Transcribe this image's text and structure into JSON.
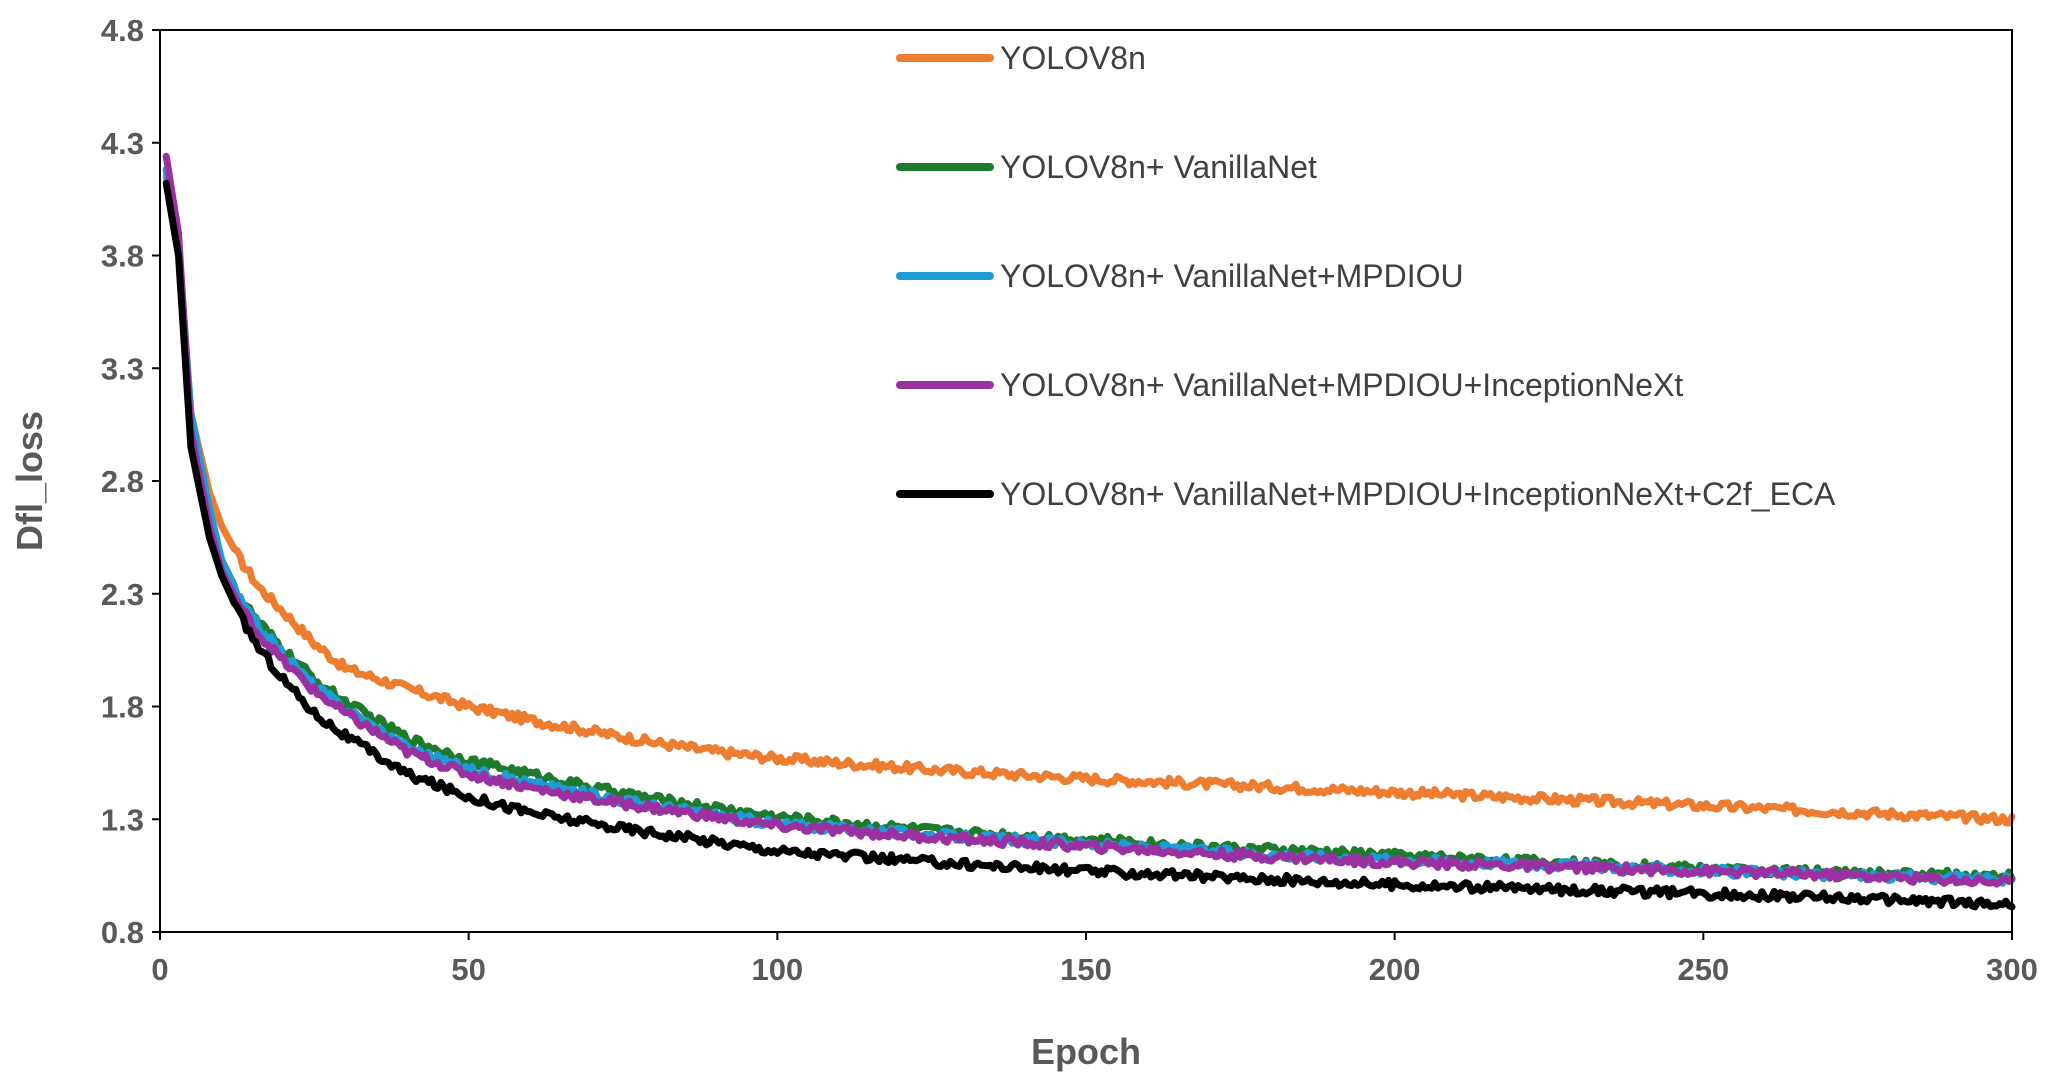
{
  "chart_data": {
    "type": "line",
    "title": "",
    "xlabel": "Epoch",
    "ylabel": "Dfl_loss",
    "xlim": [
      0,
      300
    ],
    "ylim": [
      0.8,
      4.8
    ],
    "xticks": [
      "0",
      "50",
      "100",
      "150",
      "200",
      "250",
      "300"
    ],
    "yticks": [
      "0.8",
      "1.3",
      "1.8",
      "2.3",
      "2.8",
      "3.3",
      "3.8",
      "4.3",
      "4.8"
    ],
    "legend_position": "top-center",
    "series": [
      {
        "name": "YOLOV8n",
        "color": "#ED7D31",
        "x": [
          1,
          3,
          5,
          8,
          10,
          13,
          16,
          20,
          25,
          30,
          40,
          50,
          60,
          70,
          80,
          90,
          100,
          125,
          150,
          175,
          200,
          225,
          250,
          275,
          300
        ],
        "y": [
          4.15,
          3.85,
          3.1,
          2.75,
          2.6,
          2.45,
          2.33,
          2.22,
          2.08,
          1.97,
          1.88,
          1.8,
          1.74,
          1.69,
          1.64,
          1.6,
          1.57,
          1.52,
          1.48,
          1.45,
          1.42,
          1.39,
          1.36,
          1.33,
          1.3
        ]
      },
      {
        "name": "YOLOV8n+ VanillaNet",
        "color": "#1E7B2C",
        "x": [
          1,
          3,
          5,
          8,
          10,
          13,
          16,
          20,
          25,
          30,
          40,
          50,
          60,
          70,
          80,
          90,
          100,
          125,
          150,
          175,
          200,
          225,
          250,
          275,
          300
        ],
        "y": [
          4.18,
          3.85,
          3.05,
          2.65,
          2.45,
          2.28,
          2.17,
          2.05,
          1.92,
          1.82,
          1.66,
          1.56,
          1.5,
          1.44,
          1.39,
          1.35,
          1.31,
          1.25,
          1.21,
          1.17,
          1.14,
          1.11,
          1.08,
          1.06,
          1.05
        ]
      },
      {
        "name": "YOLOV8n+ VanillaNet+MPDIOU",
        "color": "#1F9BD7",
        "x": [
          1,
          3,
          5,
          8,
          10,
          13,
          16,
          20,
          25,
          30,
          40,
          50,
          60,
          70,
          80,
          90,
          100,
          125,
          150,
          175,
          200,
          225,
          250,
          275,
          300
        ],
        "y": [
          4.18,
          3.85,
          3.1,
          2.68,
          2.45,
          2.27,
          2.15,
          2.03,
          1.89,
          1.79,
          1.62,
          1.52,
          1.46,
          1.41,
          1.36,
          1.32,
          1.28,
          1.23,
          1.19,
          1.15,
          1.12,
          1.1,
          1.07,
          1.05,
          1.03
        ]
      },
      {
        "name": "YOLOV8n+ VanillaNet+MPDIOU+InceptionNeXt",
        "color": "#9B30A0",
        "x": [
          1,
          3,
          5,
          8,
          10,
          13,
          16,
          20,
          25,
          30,
          40,
          50,
          60,
          70,
          80,
          90,
          100,
          125,
          150,
          175,
          200,
          225,
          250,
          275,
          300
        ],
        "y": [
          4.24,
          3.9,
          3.02,
          2.6,
          2.4,
          2.24,
          2.12,
          2.0,
          1.87,
          1.77,
          1.6,
          1.5,
          1.44,
          1.39,
          1.35,
          1.31,
          1.27,
          1.22,
          1.18,
          1.14,
          1.11,
          1.09,
          1.07,
          1.05,
          1.02
        ]
      },
      {
        "name": "YOLOV8n+ VanillaNet+MPDIOU+InceptionNeXt+C2f_ECA",
        "color": "#000000",
        "x": [
          1,
          3,
          5,
          8,
          10,
          13,
          16,
          20,
          25,
          30,
          40,
          50,
          60,
          70,
          80,
          90,
          100,
          125,
          150,
          175,
          200,
          225,
          250,
          275,
          300
        ],
        "y": [
          4.12,
          3.8,
          2.95,
          2.55,
          2.38,
          2.2,
          2.06,
          1.92,
          1.77,
          1.67,
          1.5,
          1.4,
          1.33,
          1.28,
          1.24,
          1.2,
          1.16,
          1.11,
          1.07,
          1.04,
          1.01,
          0.99,
          0.97,
          0.95,
          0.92
        ]
      }
    ]
  }
}
